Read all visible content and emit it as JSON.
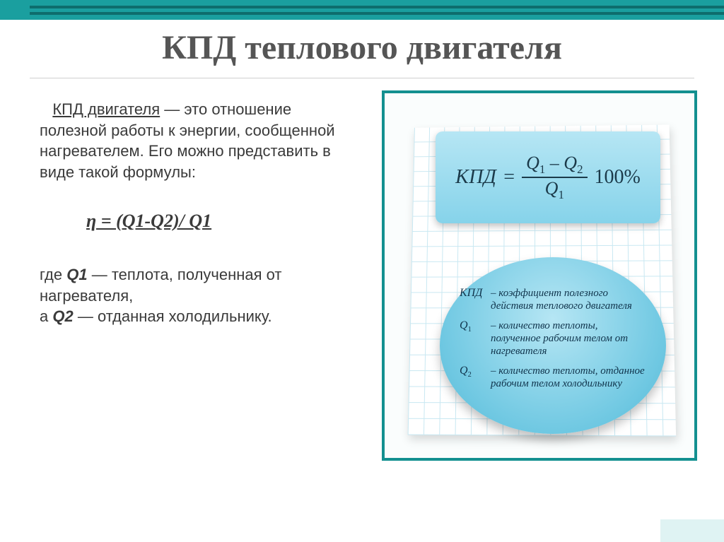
{
  "slide": {
    "title": "КПД теплового двигателя",
    "title_color": "#555555",
    "title_fontsize": 48,
    "divider_color": "#cfcfcf",
    "top_bar_color": "#1a9f9f",
    "top_bar_stripe_color": "#0e6d6d",
    "background": "#ffffff"
  },
  "left": {
    "term": "КПД двигателя",
    "definition_rest": " — это отношение полезной работы к энергии, сообщенной нагревателем. Его можно представить в виде такой формулы:",
    "formula": "η = (Q1-Q2)/ Q1",
    "where_prefix": "где ",
    "q1_sym": "Q1",
    "q1_text": " — теплота, полученная от нагревателя,",
    "q2_prefix": "а ",
    "q2_sym": "Q2",
    "q2_text": " — отданная холодильнику.",
    "text_color": "#3a3a3a",
    "body_fontsize": 22
  },
  "right": {
    "border_color": "#139090",
    "grid_color": "#c9e8f2",
    "formula_card": {
      "bg_top": "#b6e6f4",
      "bg_bottom": "#86d3ea",
      "label": "КПД",
      "eq": "=",
      "num_a": "Q",
      "num_a_sub": "1",
      "num_minus": " – ",
      "num_b": "Q",
      "num_b_sub": "2",
      "den": "Q",
      "den_sub": "1",
      "suffix": "100%"
    },
    "legend_ellipse": {
      "bg_inner": "#b6e6f4",
      "bg_outer": "#54b6d2",
      "rows": [
        {
          "sym": "КПД",
          "txt": "– коэффициент полезного действия теплового двигателя"
        },
        {
          "sym_html": "Q<sub>1</sub>",
          "txt": "– количество теплоты, полученное рабочим телом от нагревателя"
        },
        {
          "sym_html": "Q<sub>2</sub>",
          "txt": "– количество теплоты, отданное рабочим телом холодильнику"
        }
      ]
    }
  }
}
